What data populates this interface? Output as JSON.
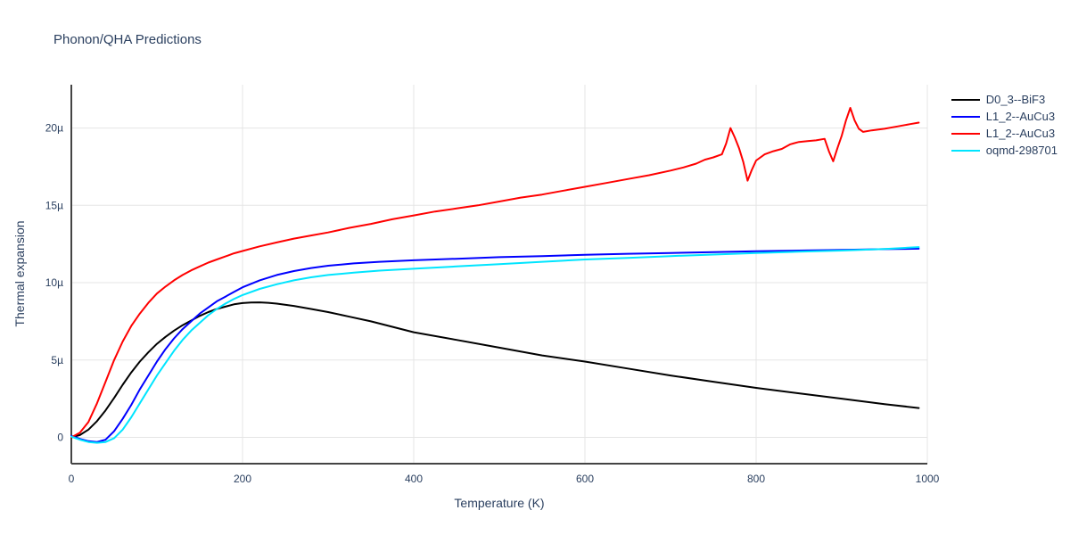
{
  "chart_data": {
    "type": "line",
    "title": "Phonon/QHA Predictions",
    "xlabel": "Temperature (K)",
    "ylabel": "Thermal expansion",
    "xlim": [
      0,
      1000
    ],
    "ylim": [
      -1.7,
      22.8
    ],
    "grid": true,
    "legend_position": "top-right",
    "xticks": {
      "values": [
        0,
        200,
        400,
        600,
        800,
        1000
      ],
      "labels": [
        "0",
        "200",
        "400",
        "600",
        "800",
        "1000"
      ]
    },
    "yticks": {
      "values": [
        0,
        5,
        10,
        15,
        20
      ],
      "labels": [
        "0",
        "5µ",
        "10µ",
        "15µ",
        "20µ"
      ]
    },
    "axis_color": "#444444",
    "grid_color": "#e5e5e5",
    "text_color": "#2a3f5f",
    "series": [
      {
        "name": "D0_3--BiF3",
        "color": "#000000",
        "x": [
          0,
          10,
          20,
          30,
          40,
          50,
          60,
          70,
          80,
          90,
          100,
          110,
          120,
          130,
          140,
          150,
          160,
          170,
          180,
          190,
          200,
          210,
          220,
          230,
          240,
          260,
          280,
          300,
          325,
          350,
          375,
          400,
          450,
          500,
          550,
          600,
          650,
          700,
          750,
          800,
          850,
          900,
          950,
          990
        ],
        "y": [
          0,
          0.15,
          0.5,
          1.05,
          1.75,
          2.55,
          3.4,
          4.2,
          4.9,
          5.5,
          6.05,
          6.5,
          6.9,
          7.25,
          7.55,
          7.85,
          8.1,
          8.3,
          8.45,
          8.6,
          8.68,
          8.72,
          8.73,
          8.7,
          8.65,
          8.5,
          8.3,
          8.1,
          7.8,
          7.5,
          7.15,
          6.8,
          6.3,
          5.8,
          5.3,
          4.9,
          4.45,
          4.0,
          3.6,
          3.2,
          2.85,
          2.5,
          2.15,
          1.9
        ]
      },
      {
        "name": "L1_2--AuCu3",
        "color": "#0000ff",
        "x": [
          0,
          5,
          10,
          20,
          30,
          40,
          50,
          60,
          70,
          80,
          90,
          100,
          110,
          120,
          130,
          140,
          150,
          160,
          170,
          180,
          190,
          200,
          220,
          240,
          260,
          280,
          300,
          330,
          360,
          400,
          450,
          500,
          550,
          600,
          650,
          700,
          750,
          800,
          850,
          900,
          950,
          990
        ],
        "y": [
          0.1,
          0,
          -0.1,
          -0.25,
          -0.3,
          -0.15,
          0.4,
          1.2,
          2.1,
          3.1,
          4.0,
          4.9,
          5.7,
          6.4,
          7.0,
          7.5,
          8.0,
          8.4,
          8.8,
          9.1,
          9.4,
          9.7,
          10.15,
          10.5,
          10.75,
          10.95,
          11.1,
          11.25,
          11.35,
          11.45,
          11.55,
          11.65,
          11.72,
          11.8,
          11.87,
          11.92,
          11.98,
          12.03,
          12.08,
          12.12,
          12.17,
          12.2
        ]
      },
      {
        "name": "L1_2--AuCu3",
        "color": "#ff0000",
        "x": [
          0,
          10,
          20,
          30,
          40,
          50,
          60,
          70,
          80,
          90,
          100,
          110,
          120,
          130,
          140,
          150,
          160,
          170,
          180,
          190,
          200,
          220,
          240,
          260,
          280,
          300,
          325,
          350,
          375,
          400,
          425,
          450,
          475,
          500,
          525,
          550,
          575,
          600,
          625,
          650,
          675,
          700,
          715,
          730,
          740,
          750,
          760,
          765,
          770,
          775,
          780,
          785,
          790,
          795,
          800,
          810,
          820,
          830,
          840,
          850,
          860,
          870,
          880,
          885,
          890,
          895,
          900,
          905,
          910,
          915,
          920,
          925,
          935,
          950,
          965,
          980,
          990
        ],
        "y": [
          0,
          0.3,
          1.0,
          2.2,
          3.6,
          5.0,
          6.2,
          7.2,
          8.0,
          8.7,
          9.3,
          9.75,
          10.15,
          10.5,
          10.8,
          11.05,
          11.3,
          11.5,
          11.7,
          11.9,
          12.05,
          12.35,
          12.6,
          12.85,
          13.05,
          13.25,
          13.55,
          13.8,
          14.1,
          14.35,
          14.6,
          14.8,
          15.0,
          15.25,
          15.5,
          15.7,
          15.95,
          16.2,
          16.45,
          16.7,
          16.95,
          17.25,
          17.45,
          17.7,
          17.95,
          18.1,
          18.3,
          19.0,
          20.0,
          19.4,
          18.7,
          17.8,
          16.6,
          17.3,
          17.9,
          18.3,
          18.5,
          18.65,
          18.95,
          19.1,
          19.15,
          19.2,
          19.3,
          18.5,
          17.85,
          18.7,
          19.5,
          20.5,
          21.3,
          20.5,
          19.95,
          19.75,
          19.85,
          19.95,
          20.1,
          20.25,
          20.35
        ]
      },
      {
        "name": "oqmd-298701",
        "color": "#00e5ff",
        "x": [
          0,
          5,
          10,
          20,
          30,
          40,
          50,
          60,
          70,
          80,
          90,
          100,
          110,
          120,
          130,
          140,
          150,
          160,
          170,
          180,
          190,
          200,
          220,
          240,
          260,
          280,
          300,
          330,
          360,
          400,
          450,
          500,
          550,
          600,
          650,
          700,
          750,
          800,
          850,
          900,
          950,
          990
        ],
        "y": [
          0.05,
          -0.05,
          -0.15,
          -0.3,
          -0.35,
          -0.3,
          -0.05,
          0.5,
          1.3,
          2.2,
          3.1,
          4.0,
          4.8,
          5.6,
          6.3,
          6.9,
          7.4,
          7.9,
          8.3,
          8.65,
          8.95,
          9.2,
          9.6,
          9.9,
          10.15,
          10.35,
          10.5,
          10.65,
          10.78,
          10.9,
          11.05,
          11.2,
          11.35,
          11.5,
          11.6,
          11.72,
          11.82,
          11.92,
          12.0,
          12.08,
          12.18,
          12.3
        ]
      }
    ]
  }
}
